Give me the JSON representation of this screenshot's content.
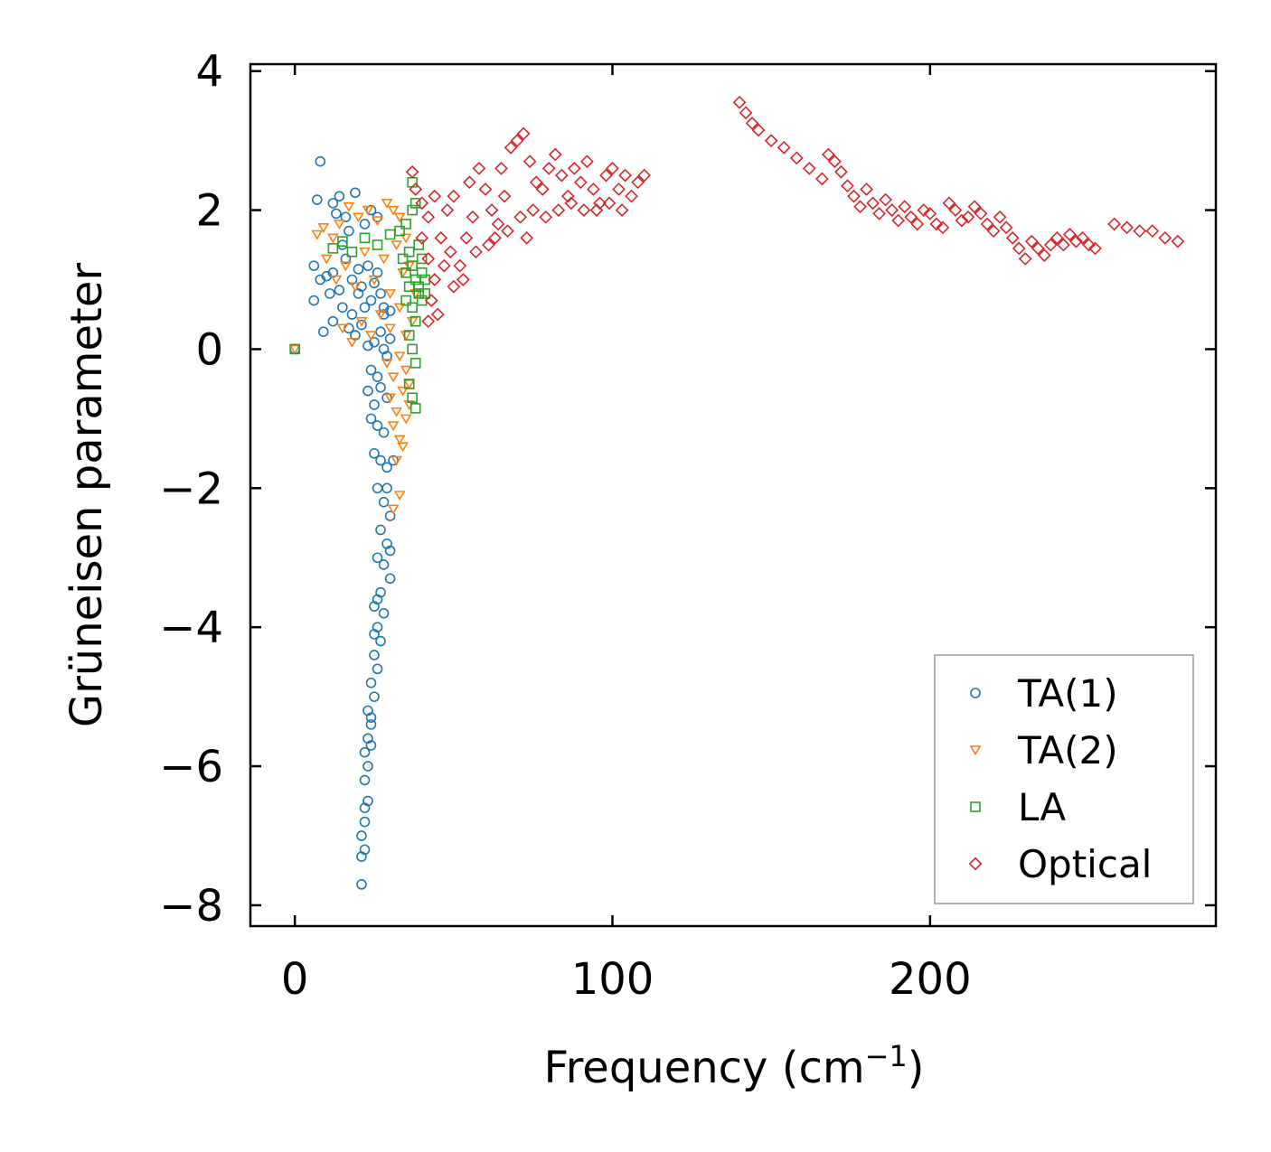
{
  "chart_data": {
    "type": "scatter",
    "title": "",
    "xlabel": "Frequency (cm",
    "xlabel_sup": "−1",
    "xlabel_end": ")",
    "ylabel": "Grüneisen parameter",
    "xlim": [
      -14,
      290
    ],
    "ylim": [
      -8.3,
      4.1
    ],
    "xticks": [
      0,
      100,
      200
    ],
    "xtick_labels": [
      "0",
      "100",
      "200"
    ],
    "yticks": [
      -8,
      -6,
      -4,
      -2,
      0,
      2,
      4
    ],
    "ytick_labels": [
      "−8",
      "−6",
      "−4",
      "−2",
      "0",
      "2",
      "4"
    ],
    "grid": false,
    "legend_position": "bottom-right",
    "series": [
      {
        "name": "TA(1)",
        "marker": "circle",
        "color": "#1f77b4",
        "points": [
          [
            0,
            0
          ],
          [
            8,
            2.7
          ],
          [
            7,
            2.15
          ],
          [
            12,
            2.1
          ],
          [
            14,
            2.2
          ],
          [
            19,
            2.25
          ],
          [
            16,
            1.9
          ],
          [
            13,
            1.95
          ],
          [
            22,
            1.8
          ],
          [
            24,
            2.0
          ],
          [
            26,
            1.9
          ],
          [
            6,
            1.2
          ],
          [
            8,
            1.0
          ],
          [
            10,
            1.05
          ],
          [
            11,
            0.8
          ],
          [
            12,
            1.1
          ],
          [
            14,
            0.85
          ],
          [
            16,
            1.3
          ],
          [
            18,
            1.0
          ],
          [
            20,
            1.15
          ],
          [
            21,
            0.9
          ],
          [
            23,
            1.2
          ],
          [
            24,
            0.7
          ],
          [
            25,
            0.95
          ],
          [
            26,
            1.1
          ],
          [
            27,
            0.8
          ],
          [
            28,
            0.5
          ],
          [
            22,
            0.6
          ],
          [
            18,
            0.5
          ],
          [
            15,
            0.6
          ],
          [
            12,
            0.4
          ],
          [
            9,
            0.25
          ],
          [
            6,
            0.7
          ],
          [
            17,
            0.3
          ],
          [
            19,
            0.2
          ],
          [
            21,
            0.35
          ],
          [
            23,
            0.05
          ],
          [
            25,
            0.1
          ],
          [
            27,
            0.25
          ],
          [
            28,
            0.0
          ],
          [
            29,
            -0.1
          ],
          [
            30,
            0.15
          ],
          [
            24,
            -0.3
          ],
          [
            26,
            -0.4
          ],
          [
            23,
            -0.6
          ],
          [
            25,
            -0.8
          ],
          [
            27,
            -0.55
          ],
          [
            29,
            -0.7
          ],
          [
            24,
            -1.0
          ],
          [
            26,
            -1.1
          ],
          [
            28,
            -1.2
          ],
          [
            25,
            -1.5
          ],
          [
            27,
            -1.6
          ],
          [
            29,
            -1.7
          ],
          [
            26,
            -2.0
          ],
          [
            28,
            -2.2
          ],
          [
            30,
            -2.4
          ],
          [
            27,
            -2.6
          ],
          [
            29,
            -2.8
          ],
          [
            26,
            -3.0
          ],
          [
            28,
            -3.1
          ],
          [
            30,
            -3.3
          ],
          [
            27,
            -3.5
          ],
          [
            25,
            -3.7
          ],
          [
            28,
            -3.8
          ],
          [
            26,
            -4.0
          ],
          [
            27,
            -4.2
          ],
          [
            25,
            -4.4
          ],
          [
            26,
            -4.6
          ],
          [
            24,
            -4.8
          ],
          [
            25,
            -5.0
          ],
          [
            23,
            -5.2
          ],
          [
            24,
            -5.4
          ],
          [
            23,
            -5.6
          ],
          [
            22,
            -5.8
          ],
          [
            23,
            -6.0
          ],
          [
            22,
            -6.2
          ],
          [
            23,
            -6.5
          ],
          [
            22,
            -6.8
          ],
          [
            21,
            -7.0
          ],
          [
            22,
            -7.2
          ],
          [
            21,
            -7.7
          ],
          [
            24,
            -5.3
          ],
          [
            26,
            -3.6
          ],
          [
            29,
            -2.0
          ],
          [
            31,
            -1.6
          ],
          [
            30,
            -2.9
          ],
          [
            25,
            -4.1
          ],
          [
            24,
            -5.7
          ],
          [
            22,
            -6.6
          ],
          [
            21,
            -7.3
          ],
          [
            28,
            0.6
          ],
          [
            30,
            0.55
          ],
          [
            20,
            0.8
          ],
          [
            15,
            1.5
          ],
          [
            17,
            1.7
          ]
        ]
      },
      {
        "name": "TA(2)",
        "marker": "triangle-down",
        "color": "#ff7f0e",
        "points": [
          [
            0,
            0
          ],
          [
            7,
            1.65
          ],
          [
            9,
            1.75
          ],
          [
            12,
            1.6
          ],
          [
            14,
            1.8
          ],
          [
            17,
            2.05
          ],
          [
            20,
            1.9
          ],
          [
            23,
            2.0
          ],
          [
            26,
            1.85
          ],
          [
            29,
            2.1
          ],
          [
            31,
            2.0
          ],
          [
            10,
            1.3
          ],
          [
            13,
            1.0
          ],
          [
            16,
            1.2
          ],
          [
            19,
            0.9
          ],
          [
            22,
            1.4
          ],
          [
            25,
            1.0
          ],
          [
            28,
            1.3
          ],
          [
            30,
            0.8
          ],
          [
            32,
            1.5
          ],
          [
            34,
            1.1
          ],
          [
            15,
            0.3
          ],
          [
            18,
            0.1
          ],
          [
            21,
            0.4
          ],
          [
            24,
            0.2
          ],
          [
            27,
            0.5
          ],
          [
            30,
            0.3
          ],
          [
            33,
            0.6
          ],
          [
            35,
            0.2
          ],
          [
            29,
            -0.2
          ],
          [
            31,
            -0.4
          ],
          [
            33,
            -0.1
          ],
          [
            35,
            -0.3
          ],
          [
            30,
            -0.7
          ],
          [
            32,
            -0.9
          ],
          [
            34,
            -0.6
          ],
          [
            36,
            -0.5
          ],
          [
            31,
            -1.1
          ],
          [
            33,
            -1.3
          ],
          [
            35,
            -1.0
          ],
          [
            32,
            -1.6
          ],
          [
            34,
            -1.4
          ],
          [
            33,
            -2.1
          ],
          [
            31,
            -2.3
          ],
          [
            36,
            -0.8
          ],
          [
            37,
            0.4
          ],
          [
            38,
            0.8
          ],
          [
            36,
            1.2
          ],
          [
            35,
            1.6
          ],
          [
            33,
            1.9
          ]
        ]
      },
      {
        "name": "LA",
        "marker": "square",
        "color": "#2ca02c",
        "points": [
          [
            0,
            0
          ],
          [
            12,
            1.45
          ],
          [
            15,
            1.55
          ],
          [
            18,
            1.4
          ],
          [
            22,
            1.6
          ],
          [
            26,
            1.5
          ],
          [
            30,
            1.65
          ],
          [
            33,
            1.7
          ],
          [
            35,
            1.8
          ],
          [
            37,
            2.0
          ],
          [
            38,
            2.1
          ],
          [
            37,
            2.4
          ],
          [
            36,
            1.4
          ],
          [
            37,
            1.2
          ],
          [
            38,
            1.0
          ],
          [
            36,
            0.9
          ],
          [
            39,
            0.8
          ],
          [
            37,
            0.6
          ],
          [
            38,
            0.4
          ],
          [
            36,
            0.2
          ],
          [
            37,
            0.0
          ],
          [
            38,
            -0.2
          ],
          [
            36,
            -0.5
          ],
          [
            37,
            -0.7
          ],
          [
            38,
            -0.85
          ],
          [
            39,
            1.5
          ],
          [
            40,
            1.3
          ],
          [
            40,
            1.1
          ],
          [
            39,
            0.9
          ],
          [
            40,
            0.7
          ],
          [
            41,
            1.0
          ],
          [
            41,
            0.8
          ],
          [
            34,
            1.3
          ],
          [
            35,
            1.1
          ],
          [
            35,
            0.7
          ]
        ]
      },
      {
        "name": "Optical",
        "marker": "diamond",
        "color": "#d62728",
        "points": [
          [
            37,
            2.55
          ],
          [
            38,
            2.3
          ],
          [
            40,
            2.1
          ],
          [
            42,
            1.9
          ],
          [
            40,
            1.6
          ],
          [
            42,
            1.3
          ],
          [
            44,
            1.0
          ],
          [
            43,
            0.7
          ],
          [
            45,
            0.5
          ],
          [
            42,
            0.4
          ],
          [
            46,
            1.6
          ],
          [
            48,
            2.0
          ],
          [
            50,
            2.2
          ],
          [
            49,
            1.4
          ],
          [
            52,
            1.2
          ],
          [
            54,
            1.6
          ],
          [
            56,
            1.9
          ],
          [
            55,
            2.4
          ],
          [
            58,
            2.6
          ],
          [
            60,
            2.3
          ],
          [
            62,
            2.0
          ],
          [
            61,
            1.5
          ],
          [
            64,
            1.8
          ],
          [
            66,
            2.2
          ],
          [
            65,
            2.6
          ],
          [
            68,
            2.9
          ],
          [
            70,
            3.0
          ],
          [
            72,
            3.1
          ],
          [
            74,
            2.7
          ],
          [
            76,
            2.4
          ],
          [
            75,
            2.0
          ],
          [
            78,
            2.3
          ],
          [
            80,
            2.6
          ],
          [
            82,
            2.8
          ],
          [
            84,
            2.5
          ],
          [
            86,
            2.2
          ],
          [
            88,
            2.6
          ],
          [
            90,
            2.4
          ],
          [
            92,
            2.7
          ],
          [
            94,
            2.3
          ],
          [
            96,
            2.1
          ],
          [
            98,
            2.5
          ],
          [
            100,
            2.6
          ],
          [
            102,
            2.3
          ],
          [
            104,
            2.5
          ],
          [
            106,
            2.2
          ],
          [
            108,
            2.4
          ],
          [
            110,
            2.5
          ],
          [
            44,
            2.2
          ],
          [
            47,
            1.2
          ],
          [
            50,
            0.9
          ],
          [
            53,
            1.0
          ],
          [
            57,
            1.4
          ],
          [
            63,
            1.6
          ],
          [
            67,
            1.7
          ],
          [
            71,
            1.9
          ],
          [
            73,
            1.6
          ],
          [
            79,
            1.9
          ],
          [
            83,
            2.0
          ],
          [
            87,
            2.1
          ],
          [
            91,
            2.0
          ],
          [
            95,
            2.0
          ],
          [
            99,
            2.1
          ],
          [
            103,
            2.0
          ],
          [
            140,
            3.55
          ],
          [
            142,
            3.4
          ],
          [
            144,
            3.25
          ],
          [
            146,
            3.15
          ],
          [
            150,
            3.0
          ],
          [
            154,
            2.9
          ],
          [
            158,
            2.75
          ],
          [
            162,
            2.6
          ],
          [
            166,
            2.45
          ],
          [
            168,
            2.8
          ],
          [
            170,
            2.7
          ],
          [
            172,
            2.55
          ],
          [
            174,
            2.35
          ],
          [
            176,
            2.2
          ],
          [
            178,
            2.05
          ],
          [
            180,
            2.3
          ],
          [
            182,
            2.1
          ],
          [
            184,
            1.95
          ],
          [
            186,
            2.15
          ],
          [
            188,
            2.0
          ],
          [
            190,
            1.85
          ],
          [
            192,
            2.05
          ],
          [
            194,
            1.9
          ],
          [
            196,
            1.8
          ],
          [
            198,
            2.0
          ],
          [
            200,
            1.95
          ],
          [
            202,
            1.8
          ],
          [
            204,
            1.75
          ],
          [
            206,
            2.1
          ],
          [
            208,
            2.0
          ],
          [
            210,
            1.85
          ],
          [
            212,
            1.9
          ],
          [
            214,
            2.05
          ],
          [
            216,
            1.95
          ],
          [
            218,
            1.8
          ],
          [
            220,
            1.7
          ],
          [
            222,
            1.9
          ],
          [
            224,
            1.75
          ],
          [
            226,
            1.6
          ],
          [
            228,
            1.45
          ],
          [
            230,
            1.3
          ],
          [
            232,
            1.55
          ],
          [
            234,
            1.45
          ],
          [
            236,
            1.35
          ],
          [
            238,
            1.5
          ],
          [
            240,
            1.6
          ],
          [
            242,
            1.5
          ],
          [
            244,
            1.65
          ],
          [
            246,
            1.55
          ],
          [
            248,
            1.6
          ],
          [
            250,
            1.5
          ],
          [
            252,
            1.45
          ],
          [
            258,
            1.8
          ],
          [
            262,
            1.75
          ],
          [
            266,
            1.7
          ],
          [
            270,
            1.7
          ],
          [
            274,
            1.6
          ],
          [
            278,
            1.55
          ]
        ]
      }
    ]
  }
}
